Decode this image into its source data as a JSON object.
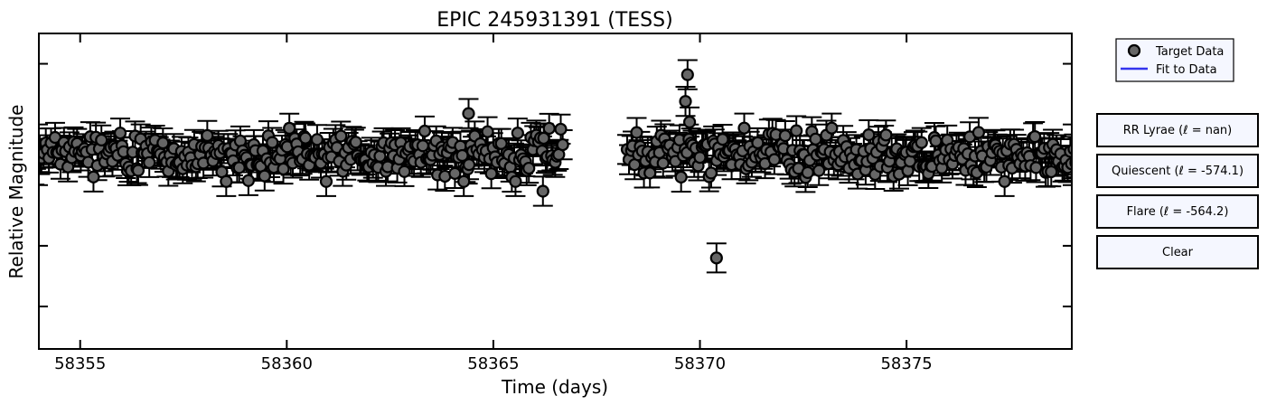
{
  "chart_data": {
    "type": "scatter",
    "title": "EPIC 245931391 (TESS)",
    "xlabel": "Time (days)",
    "ylabel": "Relative Magnitude",
    "xlim": [
      58354,
      58379
    ],
    "xticks": [
      58355,
      58360,
      58365,
      58370,
      58375
    ],
    "ylim": [
      1.6,
      -1.0
    ],
    "yticks": [
      -0.75,
      -0.25,
      0.25,
      0.75,
      1.25
    ],
    "ytick_labels_visible": false,
    "error_bar": 0.12,
    "gap": [
      58366.7,
      58368.2
    ],
    "series": [
      {
        "name": "Target Data",
        "marker": "circle",
        "color": "#666666",
        "edgecolor": "#000000",
        "base_level": 0.0,
        "scatter": 0.09,
        "outliers": [
          {
            "x": 58369.7,
            "y": -0.66
          },
          {
            "x": 58369.65,
            "y": -0.44
          },
          {
            "x": 58369.75,
            "y": -0.27
          },
          {
            "x": 58364.4,
            "y": -0.34
          },
          {
            "x": 58366.2,
            "y": 0.3
          },
          {
            "x": 58370.4,
            "y": 0.85
          }
        ]
      },
      {
        "name": "Fit to Data",
        "type": "line",
        "color": "#3333ee",
        "values": []
      }
    ],
    "legend": {
      "position": "top-right-outside",
      "entries": [
        "Target Data",
        "Fit to Data"
      ]
    }
  },
  "buttons": {
    "rr_lyrae": "RR Lyrae (ℓ = nan)",
    "quiescent": "Quiescent (ℓ = -574.1)",
    "flare": "Flare (ℓ = -564.2)",
    "clear": "Clear"
  }
}
